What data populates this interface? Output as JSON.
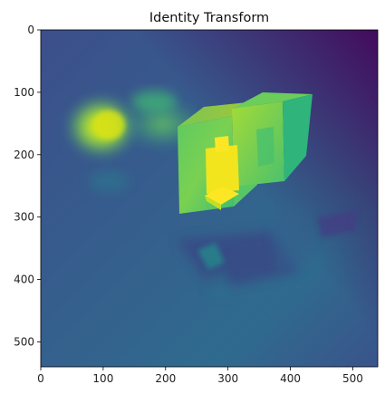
{
  "chart_data": {
    "type": "heatmap",
    "title": "Identity Transform",
    "xlabel": "",
    "ylabel": "",
    "xlim": [
      0,
      540
    ],
    "ylim": [
      540,
      0
    ],
    "x_ticks": [
      0,
      100,
      200,
      300,
      400,
      500
    ],
    "y_ticks": [
      0,
      100,
      200,
      300,
      400,
      500
    ],
    "grid": false,
    "colormap": "viridis",
    "colors": {
      "low": "#440154",
      "low_mid": "#3b528b",
      "mid": "#21918c",
      "high_mid": "#5ec962",
      "high": "#fde725",
      "background_field": "#3e5e8c"
    }
  }
}
